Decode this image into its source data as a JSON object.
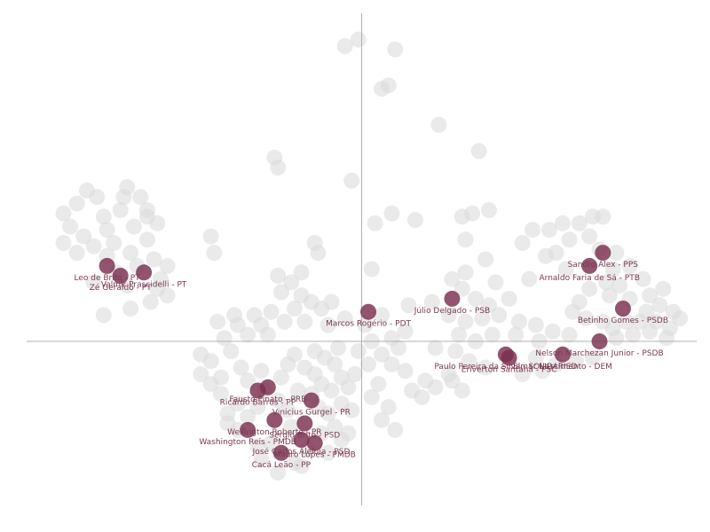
{
  "chart_data": {
    "type": "scatter",
    "title": "",
    "xlabel": "",
    "ylabel": "",
    "xlim": [
      -1.0,
      1.0
    ],
    "ylim": [
      -0.5,
      1.0
    ],
    "grid": false,
    "axes_through_origin": true,
    "colors": {
      "highlight": "#7a2e4e",
      "background": "#d9d9d9",
      "label": "#7a3a52",
      "axis": "#b0b0b0"
    },
    "highlighted": [
      {
        "label": "Leo de Brito - PT",
        "x": -0.76,
        "y": 0.23
      },
      {
        "label": "Zé Geraldo - PT",
        "x": -0.72,
        "y": 0.2
      },
      {
        "label": "Valmir Prascidelli - PT",
        "x": -0.65,
        "y": 0.21
      },
      {
        "label": "Marcos Rogério - PDT",
        "x": 0.02,
        "y": 0.09
      },
      {
        "label": "Júlio Delgado - PSB",
        "x": 0.27,
        "y": 0.13
      },
      {
        "label": "Sandro Alex - PPS",
        "x": 0.72,
        "y": 0.27
      },
      {
        "label": "Arnaldo Faria de Sá - PTB",
        "x": 0.68,
        "y": 0.23
      },
      {
        "label": "Betinho Gomes - PSDB",
        "x": 0.78,
        "y": 0.1
      },
      {
        "label": "Nelson Marchezan Junior - PSDB",
        "x": 0.71,
        "y": 0.0
      },
      {
        "label": "Paulo Pereira da Silva - SOLIDARIED",
        "x": 0.43,
        "y": -0.04
      },
      {
        "label": "Elmar Nascimento - DEM",
        "x": 0.6,
        "y": -0.04
      },
      {
        "label": "Eriverton Santana - PSC",
        "x": 0.44,
        "y": -0.05
      },
      {
        "label": "Fausto Pinato - PRB",
        "x": -0.28,
        "y": -0.14
      },
      {
        "label": "Ricardo Barros - PP",
        "x": -0.31,
        "y": -0.15
      },
      {
        "label": "Vinicius Gurgel - PR",
        "x": -0.15,
        "y": -0.18
      },
      {
        "label": "Wellington Roberto - PR",
        "x": -0.26,
        "y": -0.24
      },
      {
        "label": "Sérgio Brito - PSD",
        "x": -0.17,
        "y": -0.25
      },
      {
        "label": "Washington Reis - PMDB",
        "x": -0.34,
        "y": -0.27
      },
      {
        "label": "José Carlos Aleluia - PSD",
        "x": -0.18,
        "y": -0.3
      },
      {
        "label": "Mauro Lopes - PMDB",
        "x": -0.14,
        "y": -0.31
      },
      {
        "label": "Cacá Leão - PP",
        "x": -0.24,
        "y": -0.34
      }
    ],
    "background_points": [
      [
        -0.05,
        0.9
      ],
      [
        -0.01,
        0.92
      ],
      [
        0.1,
        0.89
      ],
      [
        0.06,
        0.77
      ],
      [
        0.08,
        0.78
      ],
      [
        0.23,
        0.66
      ],
      [
        0.35,
        0.58
      ],
      [
        -0.26,
        0.56
      ],
      [
        -0.25,
        0.53
      ],
      [
        -0.03,
        0.49
      ],
      [
        -0.85,
        0.42
      ],
      [
        -0.79,
        0.44
      ],
      [
        -0.82,
        0.46
      ],
      [
        -0.7,
        0.47
      ],
      [
        -0.66,
        0.44
      ],
      [
        -0.72,
        0.4
      ],
      [
        -0.64,
        0.38
      ],
      [
        -0.61,
        0.36
      ],
      [
        -0.68,
        0.35
      ],
      [
        -0.76,
        0.34
      ],
      [
        -0.83,
        0.32
      ],
      [
        -0.87,
        0.35
      ],
      [
        -0.89,
        0.3
      ],
      [
        -0.8,
        0.29
      ],
      [
        -0.74,
        0.3
      ],
      [
        -0.64,
        0.31
      ],
      [
        -0.69,
        0.27
      ],
      [
        -0.76,
        0.26
      ],
      [
        -0.85,
        0.27
      ],
      [
        -0.62,
        0.25
      ],
      [
        -0.67,
        0.23
      ],
      [
        -0.73,
        0.21
      ],
      [
        -0.8,
        0.18
      ],
      [
        -0.7,
        0.17
      ],
      [
        -0.61,
        0.16
      ],
      [
        -0.58,
        0.14
      ],
      [
        -0.63,
        0.12
      ],
      [
        -0.69,
        0.1
      ],
      [
        -0.77,
        0.08
      ],
      [
        -0.6,
        0.19
      ],
      [
        -0.58,
        0.23
      ],
      [
        -0.89,
        0.39
      ],
      [
        -0.77,
        0.38
      ],
      [
        -0.71,
        0.44
      ],
      [
        -0.64,
        0.4
      ],
      [
        -0.45,
        0.32
      ],
      [
        -0.44,
        0.27
      ],
      [
        -0.14,
        0.3
      ],
      [
        -0.13,
        0.27
      ],
      [
        0.09,
        0.39
      ],
      [
        0.16,
        0.37
      ],
      [
        0.04,
        0.36
      ],
      [
        0.31,
        0.31
      ],
      [
        0.33,
        0.39
      ],
      [
        0.38,
        0.4
      ],
      [
        0.3,
        0.38
      ],
      [
        0.37,
        0.25
      ],
      [
        0.03,
        0.22
      ],
      [
        -0.25,
        0.2
      ],
      [
        -0.21,
        0.18
      ],
      [
        -0.18,
        0.21
      ],
      [
        -0.24,
        0.15
      ],
      [
        -0.18,
        0.14
      ],
      [
        -0.15,
        0.12
      ],
      [
        -0.09,
        0.12
      ],
      [
        -0.12,
        0.1
      ],
      [
        -0.2,
        0.1
      ],
      [
        -0.27,
        0.09
      ],
      [
        -0.32,
        0.08
      ],
      [
        -0.38,
        0.08
      ],
      [
        -0.43,
        0.06
      ],
      [
        -0.37,
        0.05
      ],
      [
        -0.3,
        0.05
      ],
      [
        -0.23,
        0.06
      ],
      [
        -0.17,
        0.06
      ],
      [
        -0.1,
        0.05
      ],
      [
        -0.05,
        0.07
      ],
      [
        0.01,
        0.05
      ],
      [
        0.06,
        0.08
      ],
      [
        0.13,
        0.03
      ],
      [
        0.09,
        0.01
      ],
      [
        0.03,
        0.0
      ],
      [
        -0.28,
        0.02
      ],
      [
        -0.34,
        0.02
      ],
      [
        -0.41,
        0.01
      ],
      [
        0.14,
        0.11
      ],
      [
        0.21,
        0.12
      ],
      [
        0.31,
        0.21
      ],
      [
        0.27,
        0.19
      ],
      [
        0.3,
        0.16
      ],
      [
        0.34,
        0.13
      ],
      [
        0.38,
        0.11
      ],
      [
        0.4,
        0.18
      ],
      [
        0.44,
        0.13
      ],
      [
        0.5,
        0.19
      ],
      [
        0.26,
        0.08
      ],
      [
        0.31,
        0.06
      ],
      [
        0.36,
        0.07
      ],
      [
        0.41,
        0.08
      ],
      [
        0.47,
        0.06
      ],
      [
        0.52,
        0.05
      ],
      [
        0.29,
        0.02
      ],
      [
        0.34,
        0.0
      ],
      [
        0.39,
        0.02
      ],
      [
        0.46,
        0.02
      ],
      [
        0.53,
        0.0
      ],
      [
        0.57,
        0.03
      ],
      [
        0.62,
        0.02
      ],
      [
        0.22,
        -0.02
      ],
      [
        0.28,
        -0.03
      ],
      [
        0.32,
        -0.06
      ],
      [
        0.37,
        -0.08
      ],
      [
        0.26,
        -0.1
      ],
      [
        0.19,
        -0.12
      ],
      [
        0.13,
        -0.09
      ],
      [
        0.09,
        -0.07
      ],
      [
        0.06,
        -0.04
      ],
      [
        0.11,
        -0.02
      ],
      [
        0.48,
        -0.1
      ],
      [
        0.54,
        -0.09
      ],
      [
        0.58,
        -0.07
      ],
      [
        0.64,
        -0.06
      ],
      [
        0.69,
        -0.05
      ],
      [
        0.52,
        -0.05
      ],
      [
        0.48,
        0.3
      ],
      [
        0.51,
        0.34
      ],
      [
        0.56,
        0.34
      ],
      [
        0.6,
        0.36
      ],
      [
        0.65,
        0.36
      ],
      [
        0.69,
        0.38
      ],
      [
        0.72,
        0.38
      ],
      [
        0.68,
        0.32
      ],
      [
        0.71,
        0.28
      ],
      [
        0.76,
        0.27
      ],
      [
        0.75,
        0.22
      ],
      [
        0.8,
        0.23
      ],
      [
        0.84,
        0.19
      ],
      [
        0.77,
        0.17
      ],
      [
        0.73,
        0.18
      ],
      [
        0.68,
        0.16
      ],
      [
        0.74,
        0.14
      ],
      [
        0.8,
        0.13
      ],
      [
        0.86,
        0.14
      ],
      [
        0.89,
        0.11
      ],
      [
        0.93,
        0.09
      ],
      [
        0.85,
        0.09
      ],
      [
        0.83,
        0.06
      ],
      [
        0.79,
        0.06
      ],
      [
        0.75,
        0.04
      ],
      [
        0.72,
        0.06
      ],
      [
        0.67,
        0.07
      ],
      [
        0.63,
        0.09
      ],
      [
        0.88,
        0.06
      ],
      [
        0.92,
        0.04
      ],
      [
        0.86,
        0.03
      ],
      [
        0.81,
        0.02
      ],
      [
        0.76,
        0.01
      ],
      [
        0.91,
        0.01
      ],
      [
        0.95,
        0.07
      ],
      [
        0.9,
        0.16
      ],
      [
        0.58,
        0.27
      ],
      [
        0.62,
        0.31
      ],
      [
        0.55,
        0.26
      ],
      [
        0.61,
        0.22
      ],
      [
        0.65,
        0.12
      ],
      [
        -0.48,
        -0.04
      ],
      [
        -0.45,
        -0.06
      ],
      [
        -0.48,
        -0.1
      ],
      [
        -0.42,
        -0.11
      ],
      [
        -0.36,
        -0.08
      ],
      [
        -0.34,
        -0.12
      ],
      [
        -0.3,
        -0.09
      ],
      [
        -0.24,
        -0.11
      ],
      [
        -0.22,
        -0.07
      ],
      [
        -0.17,
        -0.08
      ],
      [
        -0.14,
        -0.1
      ],
      [
        -0.11,
        -0.05
      ],
      [
        -0.12,
        -0.13
      ],
      [
        -0.09,
        -0.15
      ],
      [
        -0.06,
        -0.11
      ],
      [
        -0.04,
        -0.14
      ],
      [
        -0.01,
        -0.03
      ],
      [
        -0.07,
        -0.02
      ],
      [
        -0.14,
        -0.03
      ],
      [
        -0.2,
        -0.04
      ],
      [
        -0.42,
        -0.16
      ],
      [
        -0.37,
        -0.19
      ],
      [
        -0.4,
        -0.22
      ],
      [
        -0.34,
        -0.23
      ],
      [
        -0.31,
        -0.2
      ],
      [
        -0.25,
        -0.18
      ],
      [
        -0.22,
        -0.21
      ],
      [
        -0.19,
        -0.15
      ],
      [
        -0.13,
        -0.2
      ],
      [
        -0.1,
        -0.22
      ],
      [
        -0.06,
        -0.19
      ],
      [
        -0.03,
        -0.21
      ],
      [
        -0.08,
        -0.26
      ],
      [
        -0.04,
        -0.28
      ],
      [
        -0.12,
        -0.28
      ],
      [
        -0.16,
        -0.33
      ],
      [
        -0.2,
        -0.37
      ],
      [
        -0.27,
        -0.31
      ],
      [
        -0.31,
        -0.32
      ],
      [
        -0.37,
        -0.27
      ],
      [
        -0.4,
        -0.25
      ],
      [
        -0.3,
        -0.36
      ],
      [
        -0.25,
        -0.4
      ],
      [
        -0.18,
        -0.38
      ],
      [
        -0.1,
        -0.34
      ],
      [
        -0.06,
        -0.3
      ],
      [
        0.1,
        -0.27
      ],
      [
        -0.02,
        -0.1
      ],
      [
        0.03,
        -0.17
      ],
      [
        0.06,
        -0.24
      ],
      [
        -0.45,
        -0.13
      ],
      [
        -0.39,
        -0.03
      ],
      [
        -0.29,
        -0.15
      ],
      [
        -0.21,
        -0.26
      ],
      [
        -0.15,
        -0.16
      ],
      [
        -0.08,
        -0.07
      ],
      [
        0.02,
        -0.07
      ],
      [
        0.05,
        -0.13
      ],
      [
        0.08,
        -0.2
      ],
      [
        0.15,
        -0.15
      ],
      [
        0.18,
        -0.17
      ],
      [
        0.22,
        -0.14
      ],
      [
        0.27,
        -0.12
      ],
      [
        0.3,
        -0.15
      ]
    ]
  }
}
